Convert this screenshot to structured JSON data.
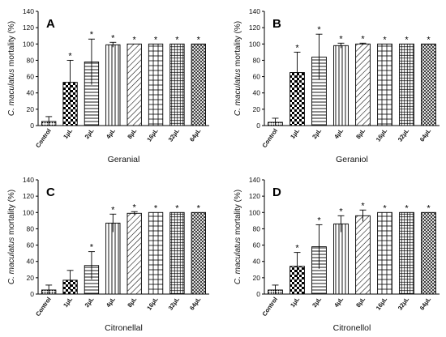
{
  "figure": {
    "background": "#ffffff",
    "ink": "#000000"
  },
  "patterns": [
    "dots",
    "checker",
    "hlines",
    "vlines",
    "diag",
    "hgrid",
    "sgrid",
    "xhatch"
  ],
  "chart_data": [
    {
      "type": "bar",
      "panel": "A",
      "title": "",
      "xlabel": "Geranial",
      "ylabel_italic": "C. maculatus",
      "ylabel_rest": " mortality (%)",
      "ylim": [
        0,
        140
      ],
      "yticks": [
        0,
        20,
        40,
        60,
        80,
        100,
        120,
        140
      ],
      "categories": [
        "Control",
        "1μL",
        "2μL",
        "4μL",
        "8μL",
        "16μL",
        "32μL",
        "64μL"
      ],
      "values": [
        5,
        53,
        78,
        99,
        100,
        100,
        100,
        100
      ],
      "errors": [
        6,
        27,
        28,
        3,
        0,
        0,
        0,
        0
      ],
      "significant": [
        false,
        true,
        true,
        true,
        true,
        true,
        true,
        true
      ],
      "significance_mark": "*"
    },
    {
      "type": "bar",
      "panel": "B",
      "title": "",
      "xlabel": "Geraniol",
      "ylabel_italic": "C. maculatus",
      "ylabel_rest": " mortality (%)",
      "ylim": [
        0,
        140
      ],
      "yticks": [
        0,
        20,
        40,
        60,
        80,
        100,
        120,
        140
      ],
      "categories": [
        "Control",
        "1μL",
        "2μL",
        "4μL",
        "8μL",
        "16μL",
        "32μL",
        "64μL"
      ],
      "values": [
        4,
        65,
        84,
        98,
        100,
        100,
        100,
        100
      ],
      "errors": [
        5,
        25,
        28,
        3,
        1,
        0,
        0,
        0
      ],
      "significant": [
        false,
        true,
        true,
        true,
        true,
        true,
        true,
        true
      ],
      "significance_mark": "*"
    },
    {
      "type": "bar",
      "panel": "C",
      "title": "",
      "xlabel": "Citronellal",
      "ylabel_italic": "C. maculatus",
      "ylabel_rest": " mortality (%)",
      "ylim": [
        0,
        140
      ],
      "yticks": [
        0,
        20,
        40,
        60,
        80,
        100,
        120,
        140
      ],
      "categories": [
        "Control",
        "1μL",
        "2μL",
        "4μL",
        "8μL",
        "16μL",
        "32μL",
        "64μL"
      ],
      "values": [
        5,
        17,
        35,
        87,
        99,
        100,
        100,
        100
      ],
      "errors": [
        6,
        12,
        17,
        11,
        2,
        0,
        0,
        0
      ],
      "significant": [
        false,
        false,
        true,
        true,
        true,
        true,
        true,
        true
      ],
      "significance_mark": "*"
    },
    {
      "type": "bar",
      "panel": "D",
      "title": "",
      "xlabel": "Citronellol",
      "ylabel_italic": "C. maculatus",
      "ylabel_rest": " mortality (%)",
      "ylim": [
        0,
        140
      ],
      "yticks": [
        0,
        20,
        40,
        60,
        80,
        100,
        120,
        140
      ],
      "categories": [
        "Control",
        "1μL",
        "2μL",
        "4μL",
        "8μL",
        "16μL",
        "32μL",
        "64μL"
      ],
      "values": [
        5,
        34,
        58,
        86,
        96,
        100,
        100,
        100
      ],
      "errors": [
        6,
        17,
        27,
        10,
        7,
        0,
        0,
        0
      ],
      "significant": [
        false,
        true,
        true,
        true,
        true,
        true,
        true,
        true
      ],
      "significance_mark": "*"
    }
  ]
}
